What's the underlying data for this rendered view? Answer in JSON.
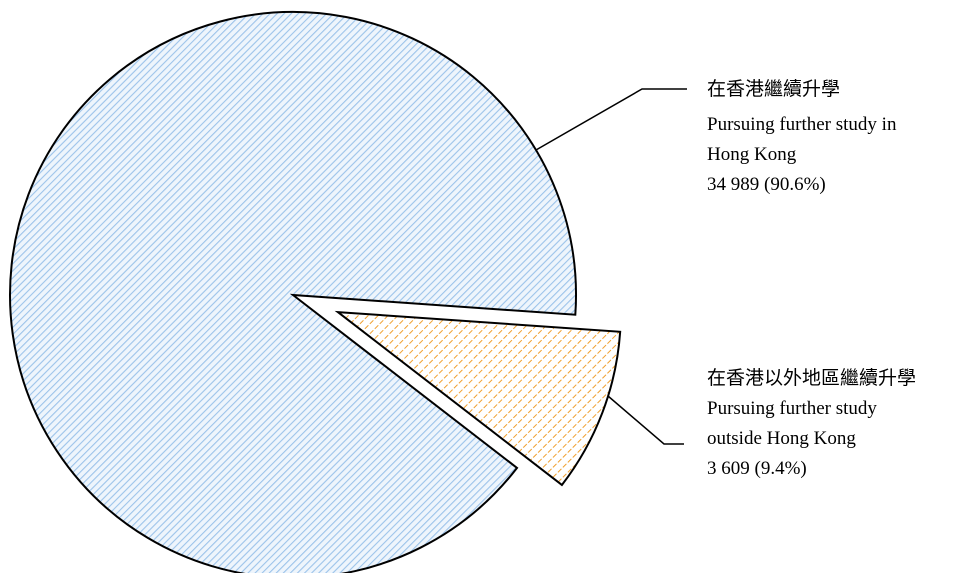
{
  "chart_data": {
    "type": "pie",
    "slices": [
      {
        "label_zh": "在香港繼續升學",
        "label_en": [
          "Pursuing further study in",
          "Hong Kong"
        ],
        "value": 34989,
        "value_text": "34 989 (90.6%)",
        "percent": 90.6,
        "exploded": false,
        "hatch_color": "#9cc3ea",
        "fill_color": "#eef5fc"
      },
      {
        "label_zh": "在香港以外地區繼續升學",
        "label_en": [
          "Pursuing further study",
          "outside Hong Kong"
        ],
        "value": 3609,
        "value_text": "3 609 (9.4%)",
        "percent": 9.4,
        "exploded": true,
        "hatch_color": "#f0a030",
        "fill_color": "#ffffff"
      }
    ],
    "legend": "none",
    "title": ""
  }
}
